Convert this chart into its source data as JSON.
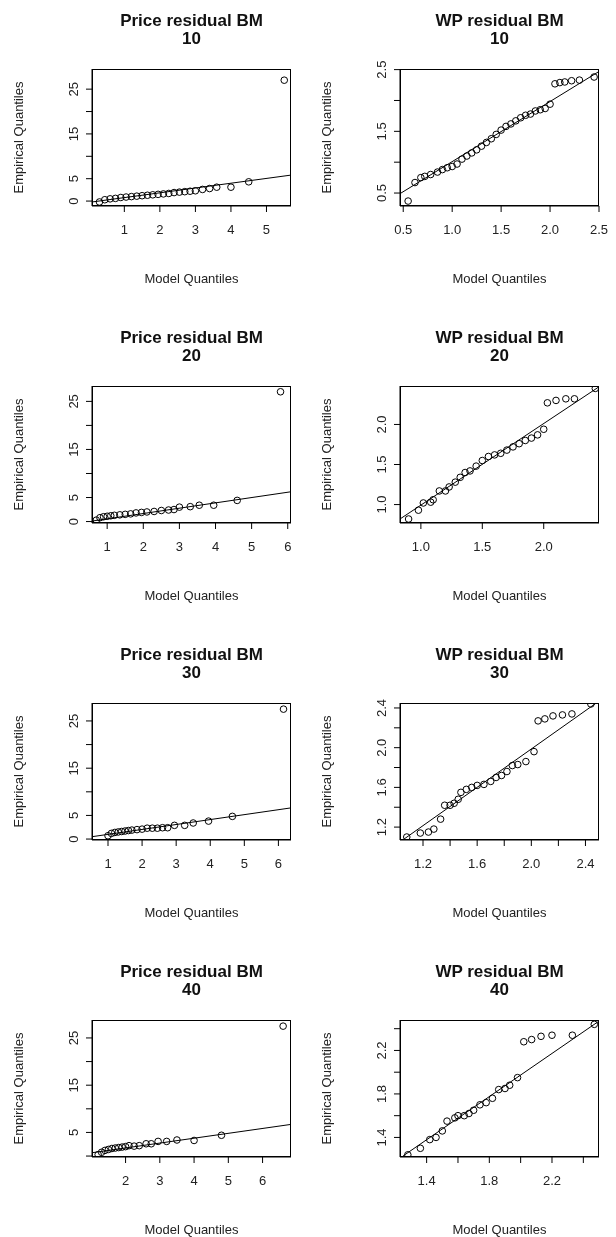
{
  "chart_data": [
    {
      "type": "scatter",
      "title": "Price residual BM\n10",
      "xlabel": "Model Quantiles",
      "ylabel": "Empirical Quantiles",
      "xlim": [
        0.09,
        5.69
      ],
      "ylim": [
        -1.1,
        29.5
      ],
      "xticks": [
        1,
        2,
        3,
        4,
        5
      ],
      "yticks": [
        0,
        5,
        {
          "value": 10,
          "label": null
        },
        15,
        {
          "value": 20,
          "label": null
        },
        25
      ],
      "series": [
        {
          "marker": "circle",
          "color": "#000000",
          "x": [
            0.3,
            0.45,
            0.6,
            0.75,
            0.9,
            1.05,
            1.2,
            1.35,
            1.5,
            1.65,
            1.8,
            1.95,
            2.1,
            2.25,
            2.4,
            2.55,
            2.7,
            2.85,
            3.0,
            3.2,
            3.4,
            3.6,
            4.0,
            4.5,
            5.5
          ],
          "values": [
            -0.2,
            0.3,
            0.5,
            0.6,
            0.8,
            0.9,
            1.0,
            1.1,
            1.2,
            1.3,
            1.4,
            1.5,
            1.6,
            1.7,
            1.9,
            2.0,
            2.1,
            2.2,
            2.3,
            2.6,
            2.8,
            3.1,
            3.1,
            4.3,
            27
          ]
        },
        {
          "type": "line",
          "color": "#000000",
          "x": [
            0.09,
            5.69
          ],
          "values": [
            -0.2,
            5.8
          ]
        }
      ]
    },
    {
      "type": "scatter",
      "title": "WP residual BM\n10",
      "xlabel": "Model Quantiles",
      "ylabel": "Empirical Quantiles",
      "xlim": [
        0.467,
        2.5
      ],
      "ylim": [
        0.29,
        2.51
      ],
      "xticks": [
        0.5,
        {
          "value": 1,
          "label": "1.0"
        },
        1.5,
        {
          "value": 2,
          "label": "2.0"
        },
        2.5
      ],
      "yticks": [
        0.5,
        {
          "value": 1,
          "label": null
        },
        1.5,
        {
          "value": 2,
          "label": null
        },
        2.5
      ],
      "series": [
        {
          "marker": "circle",
          "color": "#000000",
          "x": [
            0.55,
            0.62,
            0.68,
            0.72,
            0.78,
            0.85,
            0.9,
            0.95,
            1.0,
            1.05,
            1.1,
            1.15,
            1.2,
            1.25,
            1.3,
            1.35,
            1.4,
            1.45,
            1.5,
            1.55,
            1.6,
            1.65,
            1.7,
            1.75,
            1.8,
            1.85,
            1.9,
            1.95,
            2.0,
            2.05,
            2.1,
            2.15,
            2.22,
            2.3,
            2.45
          ],
          "values": [
            0.37,
            0.67,
            0.75,
            0.77,
            0.8,
            0.84,
            0.88,
            0.91,
            0.93,
            0.97,
            1.05,
            1.1,
            1.15,
            1.2,
            1.26,
            1.32,
            1.38,
            1.45,
            1.52,
            1.58,
            1.62,
            1.67,
            1.72,
            1.76,
            1.78,
            1.83,
            1.85,
            1.87,
            1.94,
            2.27,
            2.29,
            2.3,
            2.32,
            2.33,
            2.38
          ]
        },
        {
          "type": "line",
          "color": "#000000",
          "x": [
            0.467,
            2.49
          ],
          "values": [
            0.49,
            2.46
          ]
        }
      ]
    },
    {
      "type": "scatter",
      "title": "Price residual BM\n20",
      "xlabel": "Model Quantiles",
      "ylabel": "Empirical Quantiles",
      "xlim": [
        0.58,
        6.09
      ],
      "ylim": [
        -0.3,
        28.2
      ],
      "xticks": [
        1,
        2,
        3,
        4,
        5,
        6
      ],
      "yticks": [
        0,
        5,
        {
          "value": 10,
          "label": null
        },
        15,
        {
          "value": 20,
          "label": null
        },
        25
      ],
      "series": [
        {
          "marker": "circle",
          "color": "#000000",
          "x": [
            0.7,
            0.8,
            0.9,
            1.0,
            1.1,
            1.2,
            1.35,
            1.5,
            1.65,
            1.8,
            1.95,
            2.1,
            2.3,
            2.5,
            2.7,
            2.85,
            3.0,
            3.3,
            3.55,
            3.95,
            4.6,
            5.8
          ],
          "values": [
            0.3,
            0.8,
            1.0,
            1.1,
            1.2,
            1.3,
            1.4,
            1.5,
            1.6,
            1.8,
            1.9,
            2.0,
            2.1,
            2.3,
            2.4,
            2.5,
            3.0,
            3.1,
            3.4,
            3.4,
            4.4,
            27
          ]
        },
        {
          "type": "line",
          "color": "#000000",
          "x": [
            0.58,
            6.09
          ],
          "values": [
            0.1,
            6.2
          ]
        }
      ]
    },
    {
      "type": "scatter",
      "title": "WP residual BM\n20",
      "xlabel": "Model Quantiles",
      "ylabel": "Empirical Quantiles",
      "xlim": [
        0.83,
        2.45
      ],
      "ylim": [
        0.77,
        2.48
      ],
      "xticks": [
        {
          "value": 1,
          "label": "1.0"
        },
        1.5,
        {
          "value": 2,
          "label": "2.0"
        }
      ],
      "yticks": [
        {
          "value": 1,
          "label": "1.0"
        },
        1.5,
        {
          "value": 2,
          "label": "2.0"
        }
      ],
      "series": [
        {
          "marker": "circle",
          "color": "#000000",
          "x": [
            0.9,
            0.98,
            1.02,
            1.08,
            1.1,
            1.15,
            1.2,
            1.23,
            1.28,
            1.32,
            1.36,
            1.4,
            1.45,
            1.5,
            1.55,
            1.6,
            1.65,
            1.7,
            1.75,
            1.8,
            1.85,
            1.9,
            1.95,
            2.0,
            2.03,
            2.1,
            2.18,
            2.25,
            2.42
          ],
          "values": [
            0.82,
            0.93,
            1.02,
            1.03,
            1.06,
            1.17,
            1.17,
            1.22,
            1.28,
            1.34,
            1.4,
            1.42,
            1.48,
            1.55,
            1.6,
            1.62,
            1.64,
            1.68,
            1.72,
            1.76,
            1.8,
            1.83,
            1.87,
            1.94,
            2.27,
            2.3,
            2.32,
            2.32,
            2.45
          ]
        },
        {
          "type": "line",
          "color": "#000000",
          "x": [
            0.83,
            2.45
          ],
          "values": [
            0.82,
            2.47
          ]
        }
      ]
    },
    {
      "type": "scatter",
      "title": "Price residual BM\n30",
      "xlabel": "Model Quantiles",
      "ylabel": "Empirical Quantiles",
      "xlim": [
        0.53,
        6.37
      ],
      "ylim": [
        -0.2,
        28.8
      ],
      "xticks": [
        1,
        2,
        3,
        4,
        5,
        6
      ],
      "yticks": [
        0,
        5,
        {
          "value": 10,
          "label": null
        },
        15,
        {
          "value": 20,
          "label": null
        },
        25
      ],
      "series": [
        {
          "marker": "circle",
          "color": "#000000",
          "x": [
            1.0,
            1.1,
            1.2,
            1.3,
            1.4,
            1.5,
            1.6,
            1.7,
            1.85,
            2.0,
            2.15,
            2.3,
            2.45,
            2.6,
            2.75,
            2.95,
            3.25,
            3.5,
            3.95,
            4.65,
            6.15
          ],
          "values": [
            0.7,
            1.2,
            1.4,
            1.5,
            1.6,
            1.7,
            1.8,
            1.9,
            2.0,
            2.1,
            2.3,
            2.3,
            2.3,
            2.4,
            2.4,
            2.9,
            2.9,
            3.4,
            3.8,
            4.8,
            27.5
          ]
        },
        {
          "type": "line",
          "color": "#000000",
          "x": [
            0.53,
            6.37
          ],
          "values": [
            0.5,
            6.6
          ]
        }
      ]
    },
    {
      "type": "scatter",
      "title": "WP residual BM\n30",
      "xlabel": "Model Quantiles",
      "ylabel": "Empirical Quantiles",
      "xlim": [
        1.03,
        2.5
      ],
      "ylim": [
        1.07,
        2.45
      ],
      "xticks": [
        1.2,
        {
          "value": 1.4,
          "label": null
        },
        1.6,
        {
          "value": 1.8,
          "label": null
        },
        {
          "value": 2,
          "label": "2.0"
        },
        {
          "value": 2.2,
          "label": null
        },
        2.4
      ],
      "yticks": [
        1.2,
        {
          "value": 1.4,
          "label": null
        },
        1.6,
        {
          "value": 1.8,
          "label": null
        },
        {
          "value": 2,
          "label": "2.0"
        },
        {
          "value": 2.2,
          "label": null
        },
        2.4
      ],
      "series": [
        {
          "marker": "circle",
          "color": "#000000",
          "x": [
            1.08,
            1.18,
            1.24,
            1.28,
            1.33,
            1.36,
            1.4,
            1.43,
            1.46,
            1.48,
            1.52,
            1.56,
            1.6,
            1.65,
            1.7,
            1.74,
            1.78,
            1.82,
            1.86,
            1.9,
            1.96,
            2.02,
            2.05,
            2.1,
            2.16,
            2.23,
            2.3,
            2.44
          ],
          "values": [
            1.1,
            1.14,
            1.15,
            1.18,
            1.28,
            1.42,
            1.42,
            1.44,
            1.48,
            1.55,
            1.58,
            1.6,
            1.62,
            1.63,
            1.66,
            1.7,
            1.72,
            1.76,
            1.82,
            1.83,
            1.86,
            1.96,
            2.27,
            2.29,
            2.32,
            2.33,
            2.34,
            2.44
          ]
        },
        {
          "type": "line",
          "color": "#000000",
          "x": [
            1.05,
            2.48
          ],
          "values": [
            1.07,
            2.45
          ]
        }
      ]
    },
    {
      "type": "scatter",
      "title": "Price residual BM\n40",
      "xlabel": "Model Quantiles",
      "ylabel": "Empirical Quantiles",
      "xlim": [
        1.02,
        6.83
      ],
      "ylim": [
        -0.2,
        28.8
      ],
      "xticks": [
        2,
        3,
        4,
        5,
        6
      ],
      "yticks": [
        {
          "value": 0,
          "label": null
        },
        5,
        {
          "value": 10,
          "label": null
        },
        15,
        {
          "value": 20,
          "label": null
        },
        25
      ],
      "series": [
        {
          "marker": "circle",
          "color": "#000000",
          "x": [
            1.2,
            1.3,
            1.4,
            1.5,
            1.6,
            1.7,
            1.8,
            1.9,
            2.0,
            2.1,
            2.25,
            2.4,
            2.6,
            2.75,
            2.95,
            3.2,
            3.5,
            4.0,
            4.8,
            6.6
          ],
          "values": [
            0.3,
            0.8,
            1.2,
            1.4,
            1.6,
            1.7,
            1.8,
            1.9,
            2.0,
            2.2,
            2.1,
            2.2,
            2.6,
            2.6,
            3.1,
            3.1,
            3.4,
            3.3,
            4.4,
            27.5
          ]
        },
        {
          "type": "line",
          "color": "#000000",
          "x": [
            1.02,
            6.83
          ],
          "values": [
            0.7,
            6.7
          ]
        }
      ]
    },
    {
      "type": "scatter",
      "title": "WP residual BM\n40",
      "xlabel": "Model Quantiles",
      "ylabel": "Empirical Quantiles",
      "xlim": [
        1.23,
        2.5
      ],
      "ylim": [
        1.22,
        2.48
      ],
      "xticks": [
        1.4,
        {
          "value": 1.6,
          "label": null
        },
        1.8,
        {
          "value": 2,
          "label": null
        },
        2.2,
        {
          "value": 2.4,
          "label": null
        }
      ],
      "yticks": [
        1.4,
        {
          "value": 1.6,
          "label": null
        },
        1.8,
        {
          "value": 2,
          "label": null
        },
        2.2,
        {
          "value": 2.4,
          "label": null
        }
      ],
      "series": [
        {
          "marker": "circle",
          "color": "#000000",
          "x": [
            1.28,
            1.36,
            1.42,
            1.46,
            1.5,
            1.53,
            1.58,
            1.6,
            1.64,
            1.67,
            1.7,
            1.74,
            1.78,
            1.82,
            1.86,
            1.9,
            1.93,
            1.98,
            2.02,
            2.07,
            2.13,
            2.2,
            2.33,
            2.47
          ],
          "values": [
            1.24,
            1.3,
            1.38,
            1.4,
            1.46,
            1.55,
            1.58,
            1.6,
            1.6,
            1.62,
            1.65,
            1.7,
            1.72,
            1.76,
            1.84,
            1.85,
            1.88,
            1.95,
            2.28,
            2.3,
            2.33,
            2.34,
            2.34,
            2.44
          ]
        },
        {
          "type": "line",
          "color": "#000000",
          "x": [
            1.25,
            2.5
          ],
          "values": [
            1.23,
            2.47
          ]
        }
      ]
    }
  ]
}
